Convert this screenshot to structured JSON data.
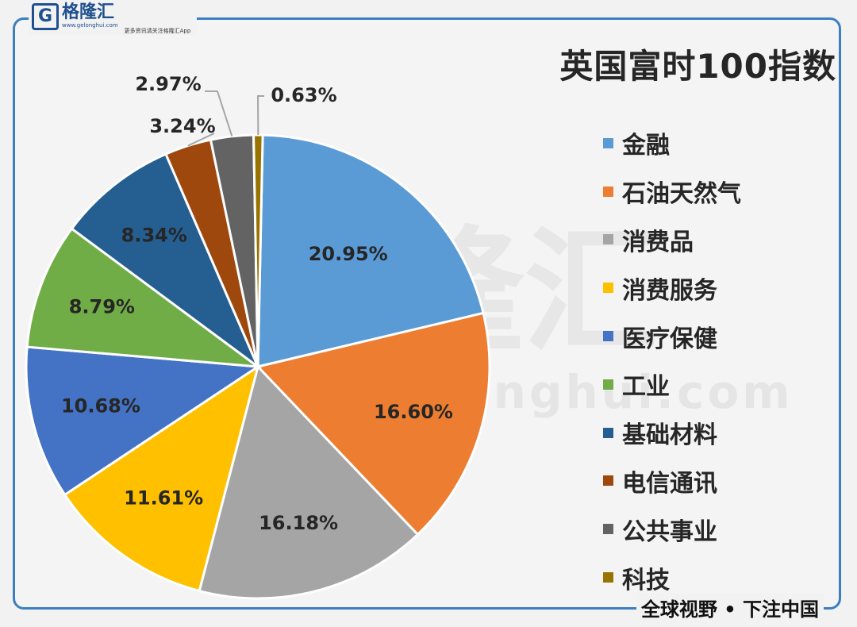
{
  "logo": {
    "mark": "G",
    "name": "格隆汇",
    "url": "www.gelonghui.com",
    "slogan": "更多资讯请关注格隆汇App"
  },
  "watermark": {
    "text": "格隆汇",
    "url": "www.gelonghui.com"
  },
  "footer": {
    "text": "全球视野 • 下注中国"
  },
  "chart_data": {
    "type": "pie",
    "title": "英国富时100指数",
    "legend_position": "right",
    "categories": [
      "金融",
      "石油天然气",
      "消费品",
      "消费服务",
      "医疗保健",
      "工业",
      "基础材料",
      "电信通讯",
      "公共事业",
      "科技"
    ],
    "values": [
      20.95,
      16.6,
      16.18,
      11.61,
      10.68,
      8.79,
      8.34,
      3.24,
      2.97,
      0.63
    ],
    "labels": [
      "20.95%",
      "16.60%",
      "16.18%",
      "11.61%",
      "10.68%",
      "8.79%",
      "8.34%",
      "3.24%",
      "2.97%",
      "0.63%"
    ],
    "colors": [
      "#5b9bd5",
      "#ed7d31",
      "#a5a5a5",
      "#ffc000",
      "#4472c4",
      "#70ad47",
      "#255e91",
      "#9e480e",
      "#636363",
      "#997300"
    ]
  }
}
